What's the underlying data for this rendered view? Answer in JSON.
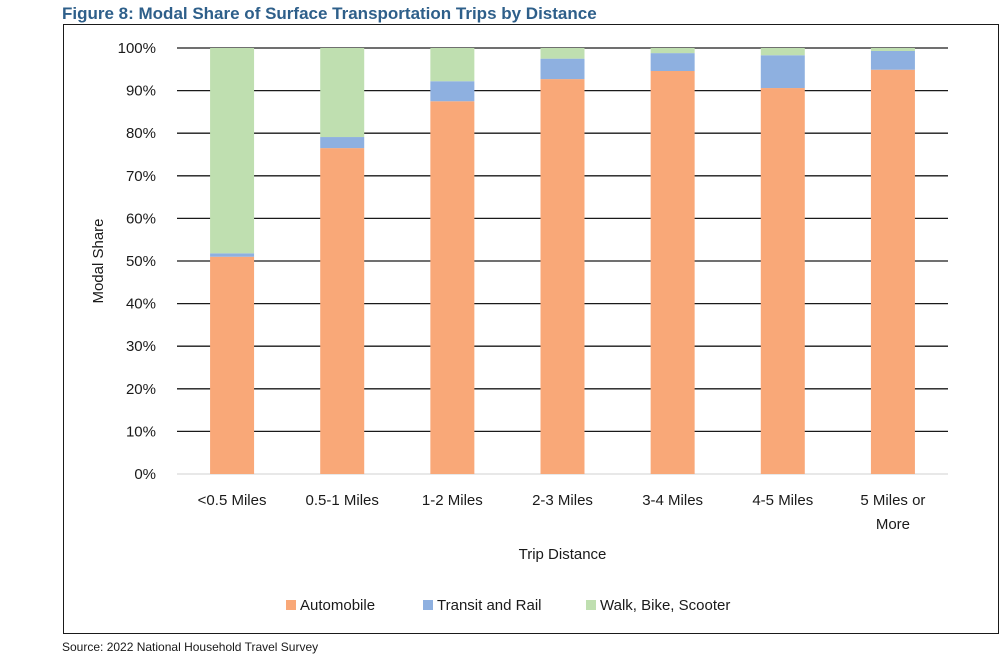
{
  "figure_title": "Figure 8: Modal Share of Surface Transportation Trips by Distance",
  "source_note": "Source: 2022 National Household Travel Survey",
  "chart_data": {
    "type": "bar",
    "stacked": true,
    "title": "",
    "xlabel": "Trip Distance",
    "ylabel": "Modal Share",
    "ylim": [
      0,
      100
    ],
    "yticks": [
      "0%",
      "10%",
      "20%",
      "30%",
      "40%",
      "50%",
      "60%",
      "70%",
      "80%",
      "90%",
      "100%"
    ],
    "categories": [
      [
        "<0.5 Miles"
      ],
      [
        "0.5-1 Miles"
      ],
      [
        "1-2 Miles"
      ],
      [
        "2-3 Miles"
      ],
      [
        "3-4 Miles"
      ],
      [
        "4-5 Miles"
      ],
      [
        "5 Miles or",
        "More"
      ]
    ],
    "grid": true,
    "legend_position": "bottom",
    "series": [
      {
        "name": "Automobile",
        "color": "#f9a878",
        "values": [
          51,
          76.5,
          87.5,
          92.7,
          94.6,
          90.6,
          94.9
        ]
      },
      {
        "name": "Transit and Rail",
        "color": "#8eb0e0",
        "values": [
          0.8,
          2.6,
          4.7,
          4.8,
          4.2,
          7.7,
          4.4
        ]
      },
      {
        "name": "Walk, Bike, Scooter",
        "color": "#bfdfb0",
        "values": [
          48.2,
          20.9,
          7.8,
          2.5,
          1.2,
          1.7,
          0.7
        ]
      }
    ]
  }
}
